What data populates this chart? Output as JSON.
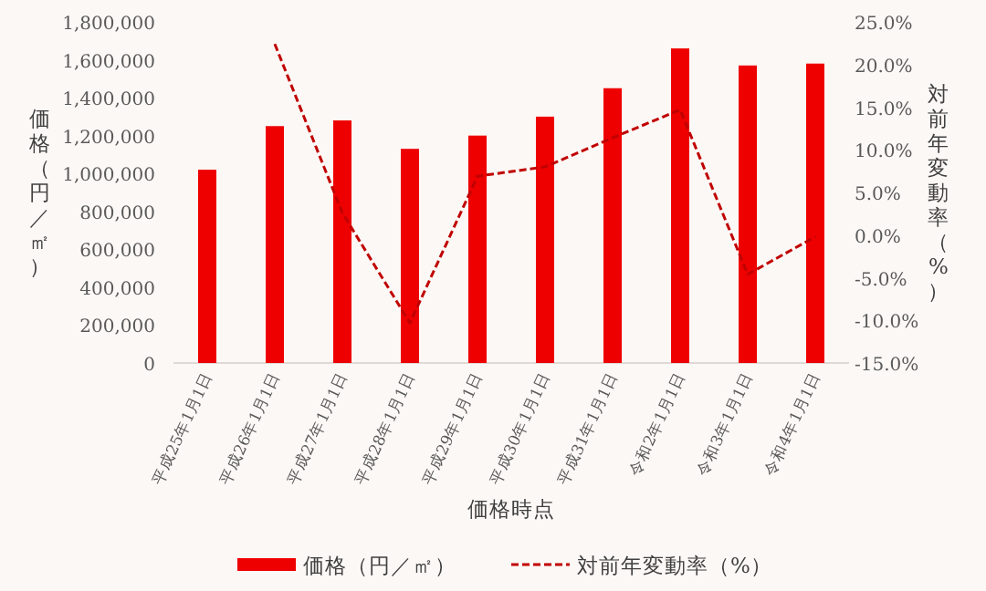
{
  "chart_data": {
    "type": "bar",
    "xlabel": "価格時点",
    "ylabel": "価格（円／㎡）",
    "y2label": "対前年変動率（%）",
    "categories": [
      "平成25年1月1日",
      "平成26年1月1日",
      "平成27年1月1日",
      "平成28年1月1日",
      "平成29年1月1日",
      "平成30年1月1日",
      "平成31年1月1日",
      "令和2年1月1日",
      "令和3年1月1日",
      "令和4年1月1日"
    ],
    "series": [
      {
        "name": "価格（円／㎡）",
        "color": "#ee0000",
        "values": [
          1020000,
          1250000,
          1280000,
          1130000,
          1200000,
          1300000,
          1450000,
          1660000,
          1570000,
          1580000
        ]
      },
      {
        "name": "対前年変動率（%）",
        "type": "line",
        "axis": "y2",
        "color": "#c00000",
        "line_style": "dashed",
        "marker": "none",
        "values": [
          null,
          22.4,
          2.6,
          -10.3,
          6.9,
          8.0,
          11.4,
          14.7,
          -4.6,
          -0.2
        ]
      }
    ],
    "ylim": [
      0,
      1800000
    ],
    "yticks": [
      {
        "value": 0,
        "label": "0"
      },
      {
        "value": 200000,
        "label": "200,000"
      },
      {
        "value": 400000,
        "label": "400,000"
      },
      {
        "value": 600000,
        "label": "600,000"
      },
      {
        "value": 800000,
        "label": "800,000"
      },
      {
        "value": 1000000,
        "label": "1,000,000"
      },
      {
        "value": 1200000,
        "label": "1,200,000"
      },
      {
        "value": 1400000,
        "label": "1,400,000"
      },
      {
        "value": 1600000,
        "label": "1,600,000"
      },
      {
        "value": 1800000,
        "label": "1,800,000"
      }
    ],
    "y2lim": [
      -15,
      25
    ],
    "y2ticks": [
      {
        "value": -15,
        "label": "-15.0%"
      },
      {
        "value": -10,
        "label": "-10.0%"
      },
      {
        "value": -5,
        "label": "-5.0%"
      },
      {
        "value": 0,
        "label": "0.0%"
      },
      {
        "value": 5,
        "label": "5.0%"
      },
      {
        "value": 10,
        "label": "10.0%"
      },
      {
        "value": 15,
        "label": "15.0%"
      },
      {
        "value": 20,
        "label": "20.0%"
      },
      {
        "value": 25,
        "label": "25.0%"
      }
    ],
    "grid": false,
    "legend": "bottom"
  }
}
